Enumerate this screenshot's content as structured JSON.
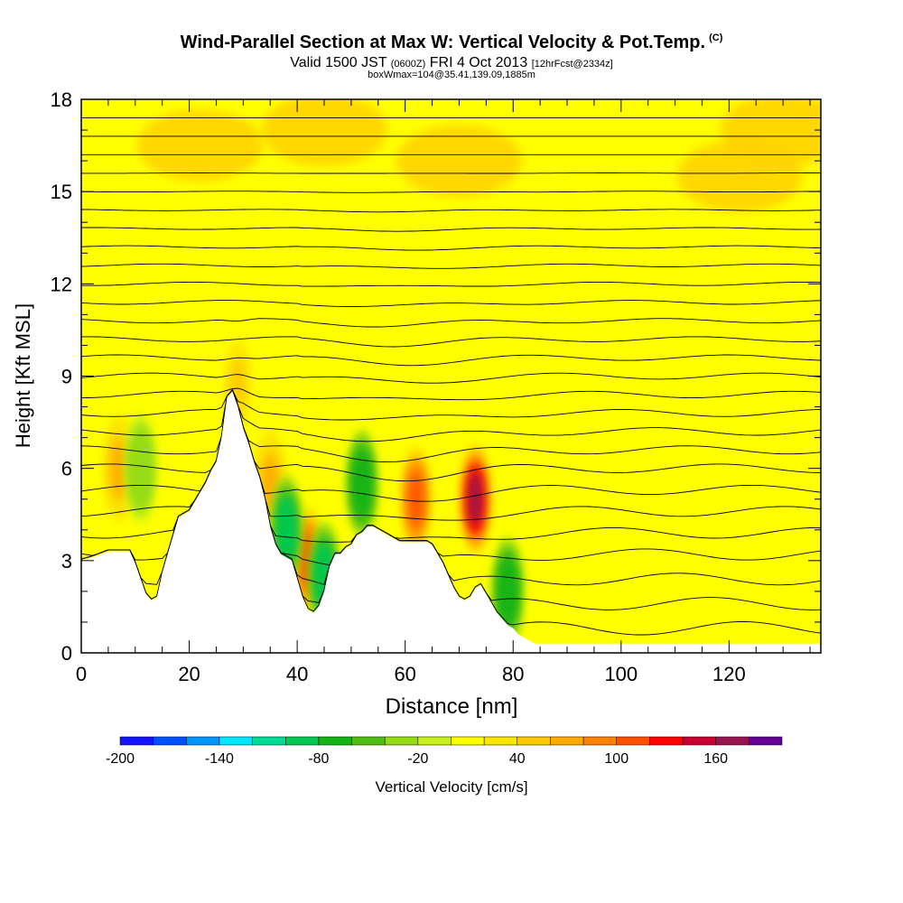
{
  "title": "Wind-Parallel Section at Max W: Vertical Velocity & Pot.Temp.",
  "title_mark": "(C)",
  "subtitle_main": "Valid 1500 JST",
  "subtitle_zone": "(0600Z)",
  "subtitle_date": "FRI 4 Oct 2013",
  "subtitle_fcst": "[12hrFcst@2334z]",
  "subtitle2": "boxWmax=104@35.41,139.09,1885m",
  "colors": {
    "background": "#ffff00",
    "terrain": "#ffffff",
    "contour": "#000000"
  },
  "chart_data": {
    "type": "heatmap",
    "xlabel": "Distance [nm]",
    "ylabel": "Height [Kft MSL]",
    "xlim": [
      0,
      137
    ],
    "ylim": [
      0,
      18
    ],
    "x_ticks": [
      "0",
      "20",
      "40",
      "60",
      "80",
      "100",
      "120"
    ],
    "y_ticks": [
      "0",
      "3",
      "6",
      "9",
      "12",
      "15",
      "18"
    ],
    "colorbar": {
      "title": "Vertical Velocity [cm/s]",
      "labels": [
        "-200",
        "-140",
        "-80",
        "-20",
        "40",
        "100",
        "160"
      ],
      "levels": [
        -200,
        -180,
        -160,
        -140,
        -120,
        -100,
        -80,
        -60,
        -40,
        -20,
        0,
        20,
        40,
        60,
        80,
        100,
        120,
        140,
        160,
        180
      ],
      "colors": [
        "#1414ff",
        "#0050ff",
        "#0096ff",
        "#00e6ff",
        "#00dc96",
        "#00c850",
        "#14b414",
        "#50be14",
        "#96dc14",
        "#c8f01e",
        "#ffff00",
        "#fae600",
        "#ffc800",
        "#ffaa00",
        "#ff8200",
        "#ff5000",
        "#ff0000",
        "#c80032",
        "#961450",
        "#640096"
      ]
    },
    "terrain_profile": [
      [
        0,
        3.0
      ],
      [
        2,
        3.1
      ],
      [
        5,
        3.3
      ],
      [
        9,
        3.3
      ],
      [
        10,
        2.9
      ],
      [
        11,
        2.4
      ],
      [
        12,
        1.9
      ],
      [
        13,
        1.7
      ],
      [
        14,
        1.8
      ],
      [
        15,
        2.6
      ],
      [
        16,
        3.2
      ],
      [
        17,
        3.8
      ],
      [
        18,
        4.4
      ],
      [
        20,
        4.6
      ],
      [
        21,
        4.9
      ],
      [
        22,
        5.2
      ],
      [
        23,
        5.5
      ],
      [
        24,
        5.9
      ],
      [
        25,
        6.2
      ],
      [
        26,
        7.0
      ],
      [
        27,
        8.3
      ],
      [
        28,
        8.5
      ],
      [
        29,
        8.0
      ],
      [
        30,
        7.3
      ],
      [
        31,
        6.8
      ],
      [
        32,
        6.2
      ],
      [
        33,
        5.7
      ],
      [
        34,
        5.0
      ],
      [
        35,
        4.1
      ],
      [
        36,
        3.5
      ],
      [
        37,
        3.2
      ],
      [
        38,
        3.1
      ],
      [
        39,
        3.0
      ],
      [
        40,
        2.4
      ],
      [
        41,
        1.8
      ],
      [
        42,
        1.4
      ],
      [
        43,
        1.3
      ],
      [
        44,
        1.5
      ],
      [
        45,
        2.0
      ],
      [
        46,
        2.8
      ],
      [
        47,
        3.2
      ],
      [
        48,
        3.2
      ],
      [
        49,
        3.4
      ],
      [
        50,
        3.5
      ],
      [
        51,
        3.8
      ],
      [
        52,
        3.9
      ],
      [
        53,
        4.1
      ],
      [
        54,
        4.1
      ],
      [
        55,
        4.0
      ],
      [
        56,
        3.9
      ],
      [
        57,
        3.8
      ],
      [
        58,
        3.7
      ],
      [
        59,
        3.6
      ],
      [
        60,
        3.6
      ],
      [
        61,
        3.6
      ],
      [
        62,
        3.6
      ],
      [
        63,
        3.6
      ],
      [
        64,
        3.6
      ],
      [
        65,
        3.5
      ],
      [
        66,
        3.2
      ],
      [
        67,
        2.9
      ],
      [
        68,
        2.5
      ],
      [
        69,
        2.1
      ],
      [
        70,
        1.8
      ],
      [
        71,
        1.7
      ],
      [
        72,
        1.8
      ],
      [
        73,
        2.1
      ],
      [
        74,
        2.2
      ],
      [
        75,
        1.9
      ],
      [
        76,
        1.6
      ],
      [
        77,
        1.3
      ],
      [
        78,
        1.1
      ],
      [
        79,
        0.9
      ],
      [
        80,
        0.8
      ],
      [
        81,
        0.6
      ],
      [
        82,
        0.5
      ],
      [
        83,
        0.4
      ],
      [
        84,
        0.3
      ],
      [
        90,
        0.3
      ],
      [
        100,
        0.3
      ],
      [
        120,
        0.3
      ],
      [
        137,
        0.3
      ]
    ],
    "updraft_cores": [
      {
        "x": 73,
        "y": 5.0,
        "w_cms": 160
      },
      {
        "x": 62,
        "y": 5.0,
        "w_cms": 100
      },
      {
        "x": 42,
        "y": 3.0,
        "w_cms": 100
      },
      {
        "x": 7,
        "y": 6.0,
        "w_cms": 60
      },
      {
        "x": 35,
        "y": 5.5,
        "w_cms": 60
      },
      {
        "x": 29,
        "y": 8.7,
        "w_cms": 40
      }
    ],
    "downdraft_cores": [
      {
        "x": 52,
        "y": 5.5,
        "w_cms": -80
      },
      {
        "x": 38,
        "y": 4.0,
        "w_cms": -100
      },
      {
        "x": 45,
        "y": 2.5,
        "w_cms": -100
      },
      {
        "x": 79,
        "y": 2.0,
        "w_cms": -80
      },
      {
        "x": 11,
        "y": 6.0,
        "w_cms": -40
      }
    ],
    "theta_contour_heights": [
      0.8,
      1.6,
      2.4,
      3.2,
      3.9,
      4.6,
      5.3,
      6.0,
      6.6,
      7.2,
      7.8,
      8.4,
      9.0,
      9.6,
      10.2,
      10.8,
      11.4,
      12.0,
      12.6,
      13.2,
      13.8,
      14.4,
      15.0,
      15.6,
      16.2,
      16.8,
      17.4
    ]
  }
}
